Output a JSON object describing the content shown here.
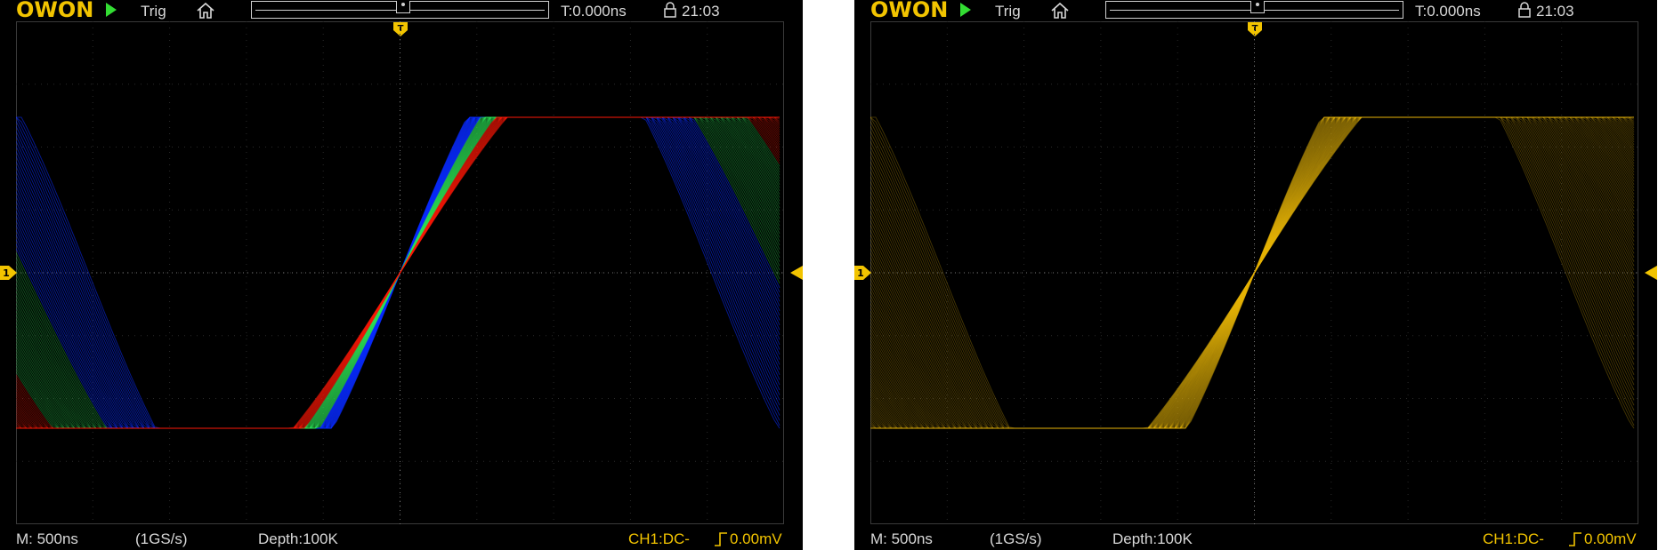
{
  "screens": [
    {
      "id": "color-persistence",
      "header": {
        "logo": "OWON",
        "run_icon": "play-icon",
        "trigger_label": "Trig",
        "home_icon": "home-icon",
        "trigger_time": "T:0.000ns",
        "lock_icon": "lock-icon",
        "clock": "21:03"
      },
      "markers": {
        "trigger": "T",
        "channel": "1"
      },
      "footer": {
        "timebase": "M: 500ns",
        "sample_rate": "(1GS/s)",
        "depth": "Depth:100K",
        "channel_info": "CH1:DC-",
        "edge_icon": "rising-edge-icon",
        "trigger_level": "0.00mV"
      },
      "display_mode": "color-graded",
      "colors": {
        "low": "#0a2cff",
        "mid": "#2ee85a",
        "high": "#ff1a0a",
        "frame": "#3a3a3a"
      }
    },
    {
      "id": "mono-persistence",
      "header": {
        "logo": "OWON",
        "run_icon": "play-icon",
        "trigger_label": "Trig",
        "home_icon": "home-icon",
        "trigger_time": "T:0.000ns",
        "lock_icon": "lock-icon",
        "clock": "21:03"
      },
      "markers": {
        "trigger": "T",
        "channel": "1"
      },
      "footer": {
        "timebase": "M: 500ns",
        "sample_rate": "(1GS/s)",
        "depth": "Depth:100K",
        "channel_info": "CH1:DC-",
        "edge_icon": "rising-edge-icon",
        "trigger_level": "0.00mV"
      },
      "display_mode": "monochrome",
      "colors": {
        "trace": "#e8b80a",
        "frame": "#3a3a3a"
      }
    }
  ],
  "colors": {
    "brand": "#f2c400",
    "run": "#33dd33",
    "text": "#d8d8d8",
    "background": "#000000"
  }
}
